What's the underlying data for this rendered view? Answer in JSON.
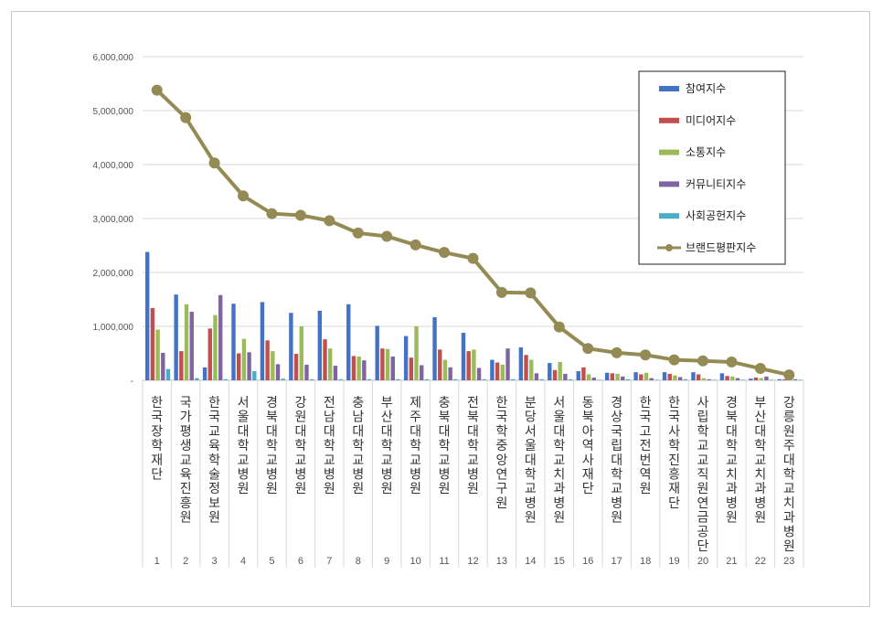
{
  "chart_data": {
    "type": "bar",
    "ylim": [
      0,
      6000000
    ],
    "yticks": [
      "-",
      "1,000,000",
      "2,000,000",
      "3,000,000",
      "4,000,000",
      "5,000,000",
      "6,000,000"
    ],
    "ytick_values": [
      0,
      1000000,
      2000000,
      3000000,
      4000000,
      5000000,
      6000000
    ],
    "grid": true,
    "legend_position": "top-right",
    "categories": [
      "한국장학재단",
      "국가평생교육진흥원",
      "한국교육학술정보원",
      "서울대학교병원",
      "경북대학교병원",
      "강원대학교병원",
      "전남대학교병원",
      "충남대학교병원",
      "부산대학교병원",
      "제주대학교병원",
      "충북대학교병원",
      "전북대학교병원",
      "한국학중앙연구원",
      "분당서울대학교병원",
      "서울대학교치과병원",
      "동북아역사재단",
      "경상국립대학교병원",
      "한국고전번역원",
      "한국사학진흥재단",
      "사립학교교직원연금공단",
      "경북대학교치과병원",
      "부산대학교치과병원",
      "강릉원주대학교치과병원"
    ],
    "ranks": [
      "1",
      "2",
      "3",
      "4",
      "5",
      "6",
      "7",
      "8",
      "9",
      "10",
      "11",
      "12",
      "13",
      "14",
      "15",
      "16",
      "17",
      "18",
      "19",
      "20",
      "21",
      "22",
      "23"
    ],
    "series": [
      {
        "name": "참여지수",
        "color": "#4472c4",
        "values": [
          2380000,
          1590000,
          240000,
          1420000,
          1450000,
          1250000,
          1290000,
          1410000,
          1010000,
          820000,
          1170000,
          880000,
          380000,
          610000,
          320000,
          170000,
          140000,
          150000,
          150000,
          150000,
          130000,
          30000,
          20000
        ]
      },
      {
        "name": "미디어지수",
        "color": "#c0504d",
        "values": [
          1340000,
          540000,
          960000,
          500000,
          740000,
          490000,
          760000,
          450000,
          590000,
          420000,
          570000,
          540000,
          330000,
          470000,
          190000,
          240000,
          130000,
          110000,
          120000,
          110000,
          80000,
          50000,
          20000
        ]
      },
      {
        "name": "소통지수",
        "color": "#9bbb59",
        "values": [
          940000,
          1410000,
          1210000,
          770000,
          540000,
          1000000,
          590000,
          440000,
          580000,
          1000000,
          380000,
          570000,
          290000,
          380000,
          340000,
          110000,
          120000,
          140000,
          90000,
          40000,
          70000,
          40000,
          40000
        ]
      },
      {
        "name": "커뮤니티지수",
        "color": "#8064a2",
        "values": [
          510000,
          1270000,
          1580000,
          520000,
          300000,
          290000,
          270000,
          370000,
          440000,
          280000,
          240000,
          230000,
          590000,
          130000,
          120000,
          50000,
          70000,
          40000,
          60000,
          20000,
          40000,
          70000,
          20000
        ]
      },
      {
        "name": "사회공헌지수",
        "color": "#4bacc6",
        "values": [
          210000,
          40000,
          20000,
          170000,
          30000,
          20000,
          20000,
          20000,
          20000,
          20000,
          20000,
          20000,
          20000,
          20000,
          20000,
          10000,
          20000,
          10000,
          20000,
          10000,
          10000,
          10000,
          10000
        ]
      }
    ],
    "line_series": {
      "name": "브랜드평판지수",
      "color": "#948a54",
      "values": [
        5380000,
        4870000,
        4030000,
        3420000,
        3090000,
        3060000,
        2960000,
        2730000,
        2670000,
        2510000,
        2370000,
        2260000,
        1630000,
        1620000,
        990000,
        590000,
        510000,
        470000,
        380000,
        360000,
        340000,
        220000,
        100000
      ]
    }
  }
}
